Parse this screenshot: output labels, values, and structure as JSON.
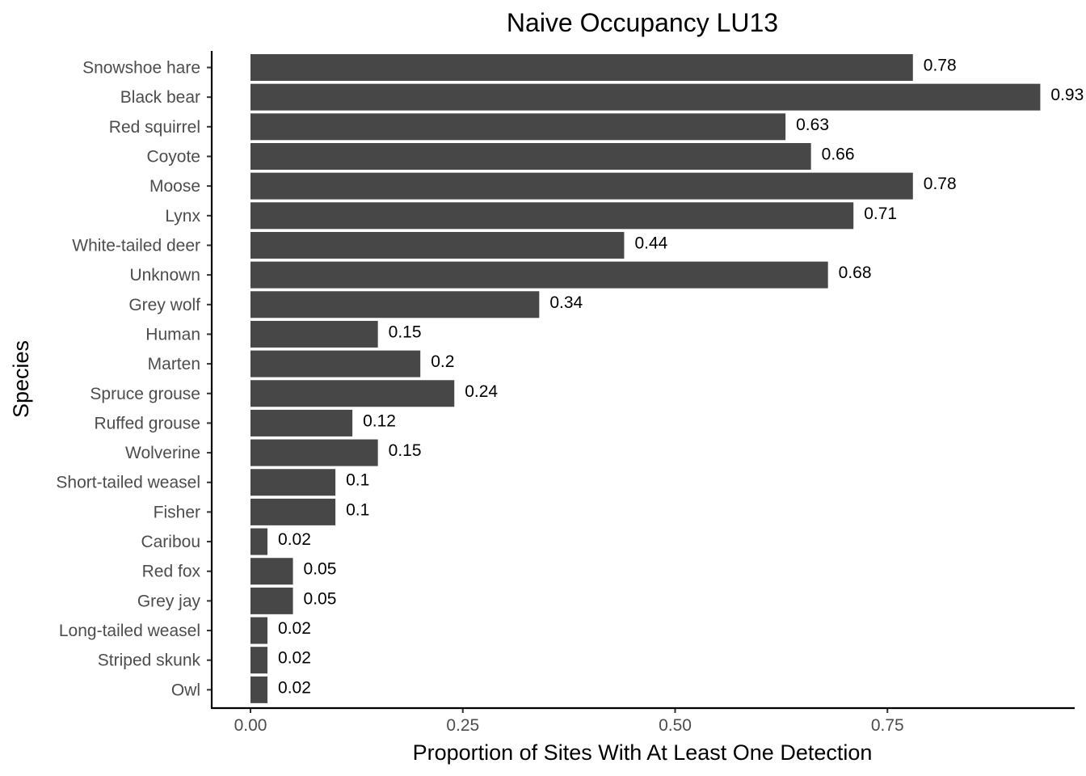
{
  "chart_data": {
    "type": "bar",
    "orientation": "horizontal",
    "title": "Naive Occupancy LU13",
    "xlabel": "Proportion of Sites With At Least One Detection",
    "ylabel": "Species",
    "categories": [
      "Snowshoe hare",
      "Black bear",
      "Red squirrel",
      "Coyote",
      "Moose",
      "Lynx",
      "White-tailed deer",
      "Unknown",
      "Grey wolf",
      "Human",
      "Marten",
      "Spruce grouse",
      "Ruffed grouse",
      "Wolverine",
      "Short-tailed weasel",
      "Fisher",
      "Caribou",
      "Red fox",
      "Grey jay",
      "Long-tailed weasel",
      "Striped skunk",
      "Owl"
    ],
    "values": [
      0.78,
      0.93,
      0.63,
      0.66,
      0.78,
      0.71,
      0.44,
      0.68,
      0.34,
      0.15,
      0.2,
      0.24,
      0.12,
      0.15,
      0.1,
      0.1,
      0.02,
      0.05,
      0.05,
      0.02,
      0.02,
      0.02
    ],
    "value_labels": [
      "0.78",
      "0.93",
      "0.63",
      "0.66",
      "0.78",
      "0.71",
      "0.44",
      "0.68",
      "0.34",
      "0.15",
      "0.2",
      "0.24",
      "0.12",
      "0.15",
      "0.1",
      "0.1",
      "0.02",
      "0.05",
      "0.05",
      "0.02",
      "0.02",
      "0.02"
    ],
    "x_ticks": [
      0,
      0.25,
      0.5,
      0.75
    ],
    "x_tick_labels": [
      "0.00",
      "0.25",
      "0.50",
      "0.75"
    ],
    "xlim": [
      -0.046,
      0.97
    ],
    "grid": false,
    "legend": "none",
    "bar_color": "#474747"
  }
}
